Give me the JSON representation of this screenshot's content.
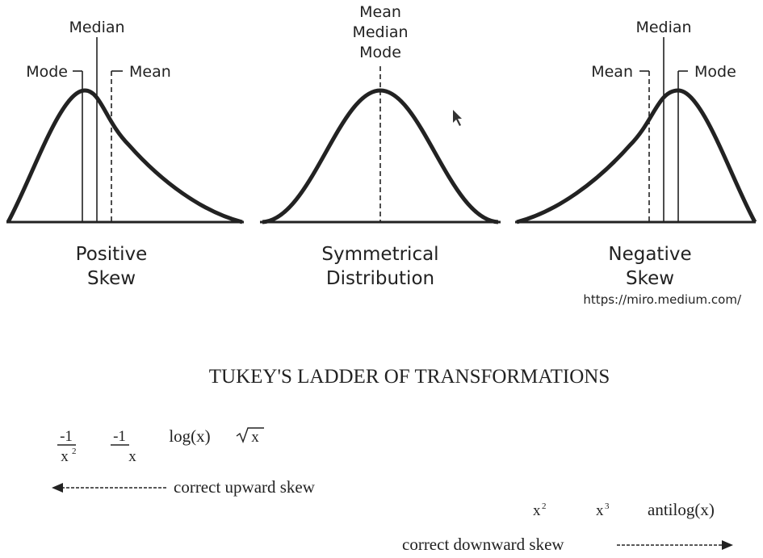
{
  "skew_figure": {
    "positive": {
      "labels": {
        "median": "Median",
        "mode": "Mode",
        "mean": "Mean"
      },
      "caption_line1": "Positive",
      "caption_line2": "Skew"
    },
    "symmetrical": {
      "labels": {
        "line1": "Mean",
        "line2": "Median",
        "line3": "Mode"
      },
      "caption_line1": "Symmetrical",
      "caption_line2": "Distribution"
    },
    "negative": {
      "labels": {
        "median": "Median",
        "mean": "Mean",
        "mode": "Mode"
      },
      "caption_line1": "Negative",
      "caption_line2": "Skew"
    },
    "source_url": "https://miro.medium.com/"
  },
  "ladder": {
    "title": "TUKEY'S LADDER OF TRANSFORMATIONS",
    "left_terms": {
      "neg_inv_sq_num": "-1",
      "neg_inv_sq_den": "x",
      "neg_inv_sq_exp": "2",
      "neg_inv_num": "-1",
      "neg_inv_den": "x",
      "log": "log(x)",
      "sqrt_arg": "x"
    },
    "upward_arrow_label": "correct upward skew",
    "right_terms": {
      "x_sq_base": "x",
      "x_sq_exp": "2",
      "x_cube_base": "x",
      "x_cube_exp": "3",
      "antilog": "antilog(x)"
    },
    "downward_arrow_label": "correct downward skew"
  },
  "colors": {
    "ink": "#222222",
    "background": "#ffffff"
  }
}
